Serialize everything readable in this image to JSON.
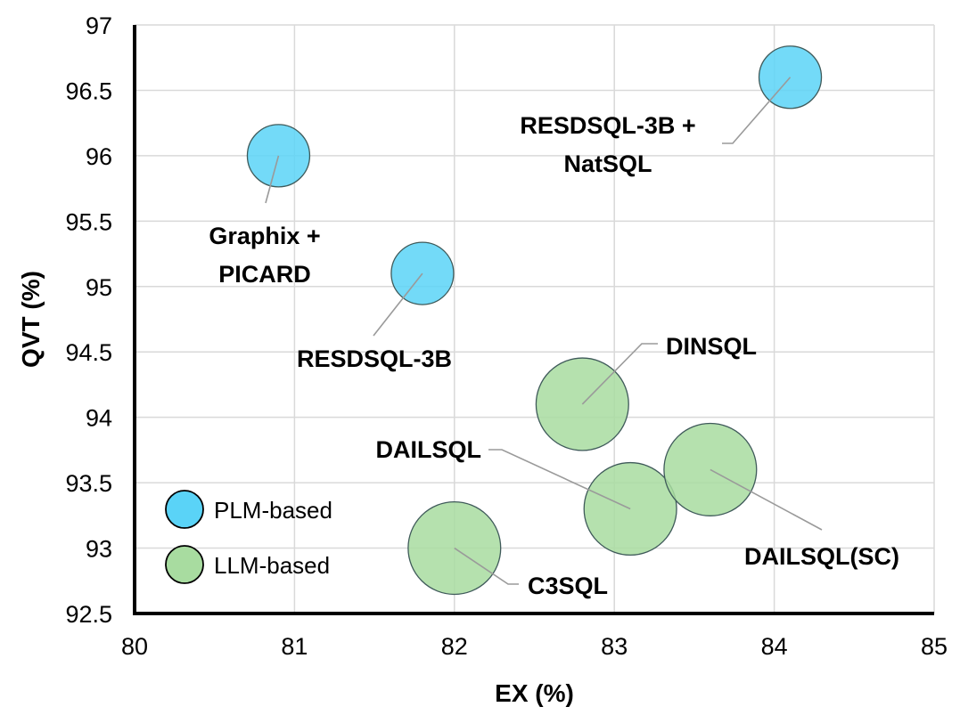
{
  "chart_data": {
    "type": "scatter",
    "subtype": "bubble",
    "xlabel": "EX (%)",
    "ylabel": "QVT (%)",
    "xlim": [
      80,
      85
    ],
    "ylim": [
      92.5,
      97
    ],
    "xticks": [
      "80",
      "81",
      "82",
      "83",
      "84",
      "85"
    ],
    "yticks": [
      "92.5",
      "93",
      "93.5",
      "94",
      "94.5",
      "95",
      "95.5",
      "96",
      "96.5",
      "97"
    ],
    "grid": true,
    "legend_position": "bottom-left",
    "series": [
      {
        "name": "PLM-based",
        "color": "#5ad3f7",
        "points": [
          {
            "label": "Graphix +\nPICARD",
            "x": 80.9,
            "y": 96.0,
            "size": 1
          },
          {
            "label": "RESDSQL-3B",
            "x": 81.8,
            "y": 95.1,
            "size": 1
          },
          {
            "label": "RESDSQL-3B +\nNatSQL",
            "x": 84.1,
            "y": 96.6,
            "size": 1
          }
        ]
      },
      {
        "name": "LLM-based",
        "color": "#a8dca0",
        "points": [
          {
            "label": "DINSQL",
            "x": 82.8,
            "y": 94.1,
            "size": 2.2
          },
          {
            "label": "DAILSQL",
            "x": 83.1,
            "y": 93.3,
            "size": 2.2
          },
          {
            "label": "C3SQL",
            "x": 82.0,
            "y": 93.0,
            "size": 2.2
          },
          {
            "label": "DAILSQL(SC)",
            "x": 83.6,
            "y": 93.6,
            "size": 2.2
          }
        ]
      }
    ]
  }
}
